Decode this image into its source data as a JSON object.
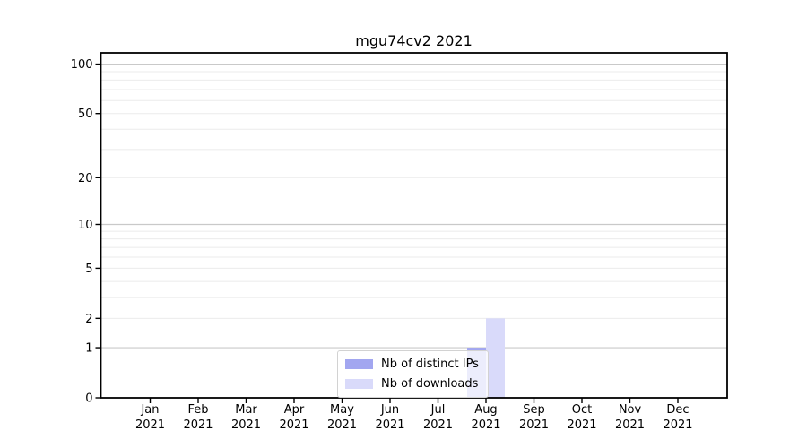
{
  "chart_data": {
    "type": "bar",
    "title": "mgu74cv2 2021",
    "categories": [
      "Jan",
      "Feb",
      "Mar",
      "Apr",
      "May",
      "Jun",
      "Jul",
      "Aug",
      "Sep",
      "Oct",
      "Nov",
      "Dec"
    ],
    "category_year": "2021",
    "series": [
      {
        "name": "Nb of distinct IPs",
        "color": "#a2a6f0",
        "values": [
          0,
          0,
          0,
          0,
          0,
          0,
          0,
          1,
          0,
          0,
          0,
          0
        ]
      },
      {
        "name": "Nb of downloads",
        "color": "#d9dafa",
        "values": [
          0,
          0,
          0,
          0,
          0,
          0,
          0,
          2,
          0,
          0,
          0,
          0
        ]
      }
    ],
    "yaxis": {
      "scale": "log1p",
      "ylim": [
        0,
        117
      ],
      "tick_values": [
        0,
        1,
        2,
        5,
        10,
        20,
        50,
        100
      ],
      "major_gridlines": [
        1,
        10,
        100
      ],
      "minor_gridlines": [
        2,
        3,
        4,
        5,
        6,
        7,
        8,
        9,
        20,
        30,
        40,
        50,
        60,
        70,
        80,
        90
      ]
    },
    "grid": true,
    "legend_position": "lower center"
  },
  "colors": {
    "spine": "#000000",
    "text": "#000000",
    "grid_major": "#c9c9c9",
    "grid_minor": "#ebebeb"
  }
}
